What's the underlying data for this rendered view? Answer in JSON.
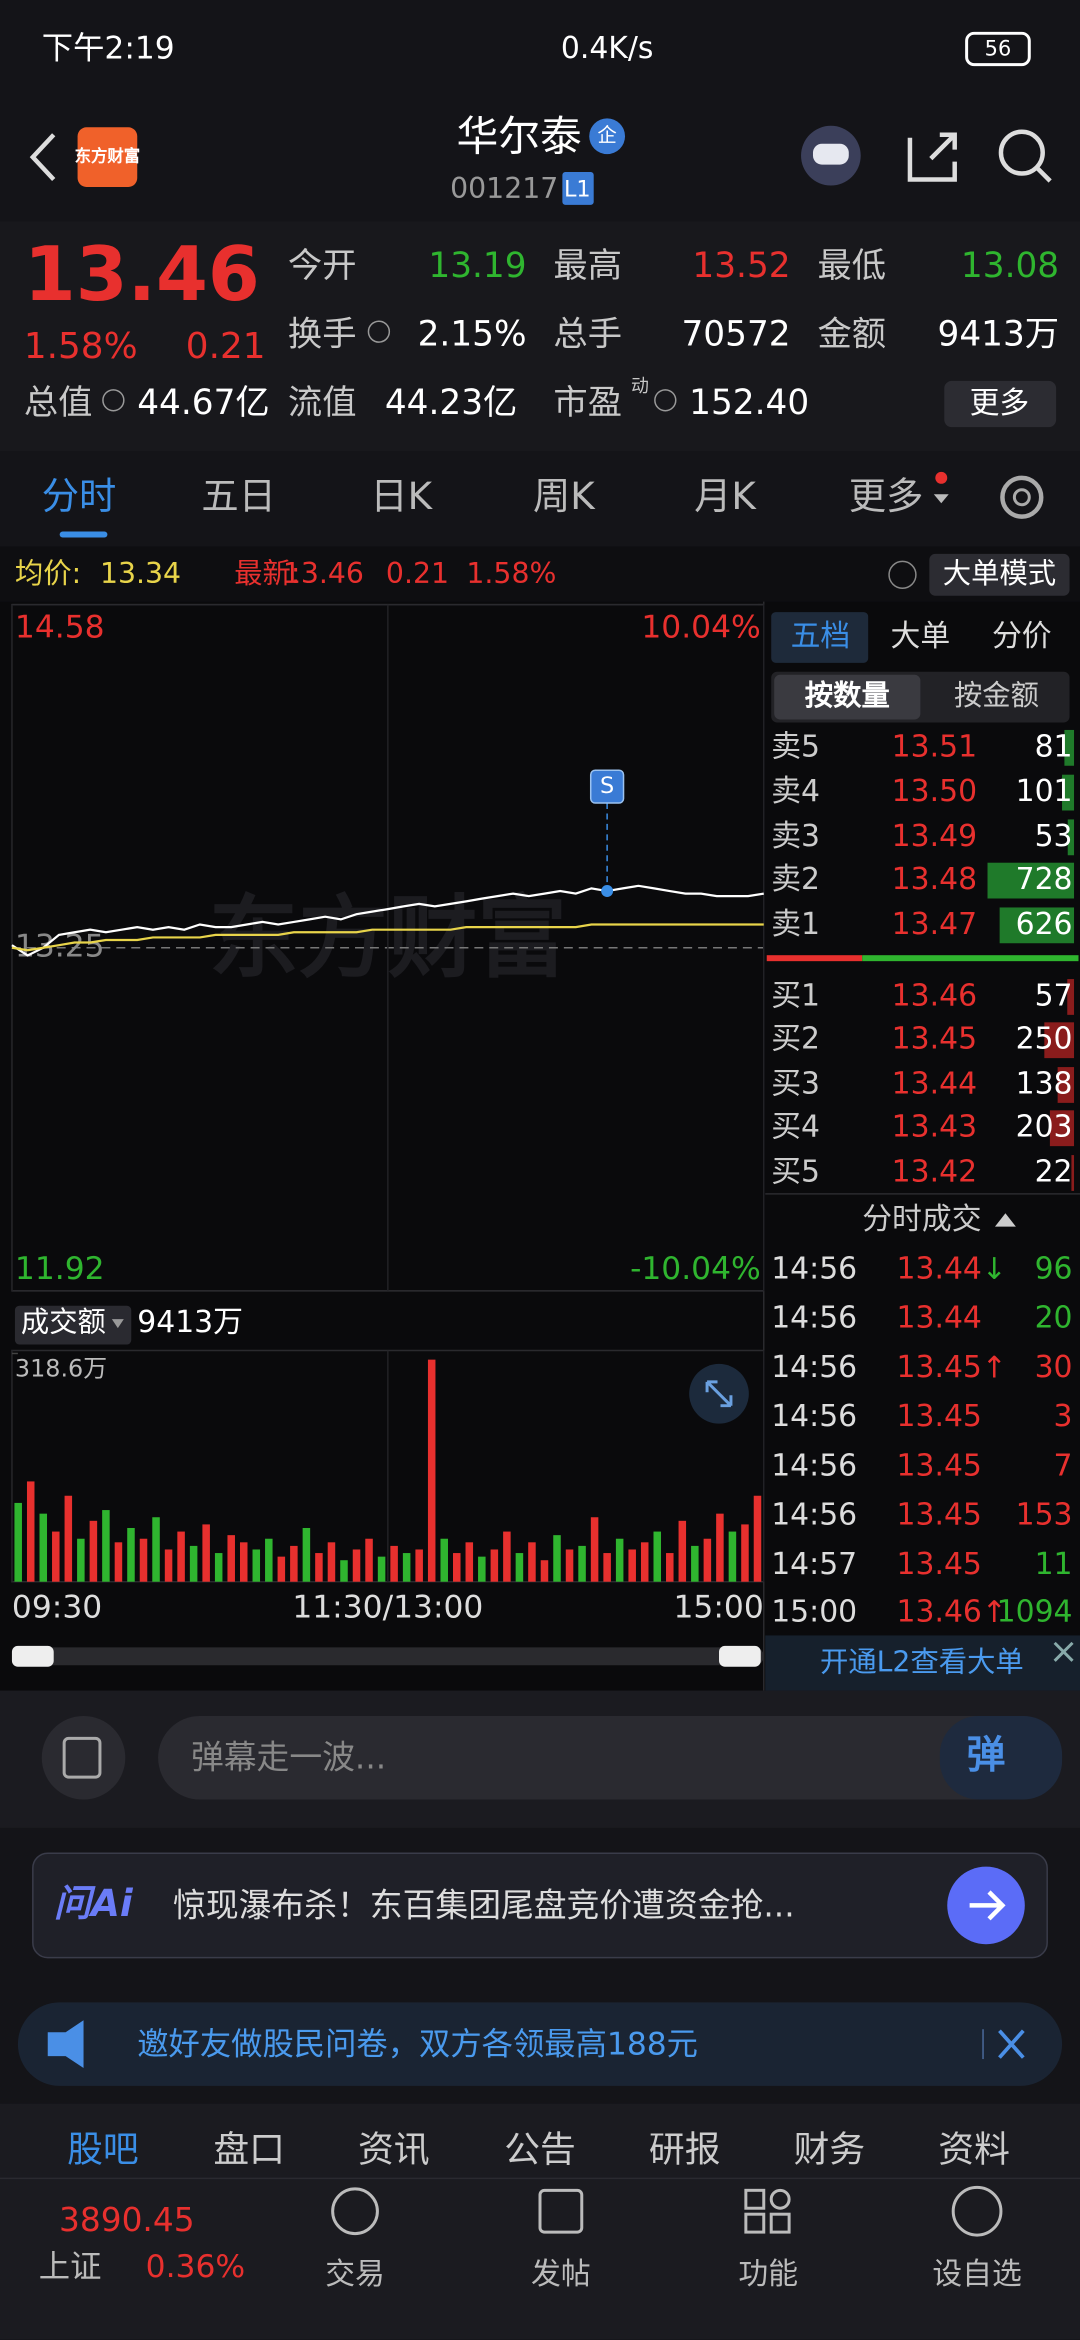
{
  "status": {
    "time": "下午2:19",
    "speed": "0.4K/s",
    "battery": "56"
  },
  "header": {
    "logo": "东方财富",
    "name": "华尔泰",
    "badge": "企",
    "code": "001217",
    "level": "L1"
  },
  "quote": {
    "price": "13.46",
    "pct": "1.58%",
    "change": "0.21",
    "pe_tag": "动",
    "more": "更多",
    "fields": [
      {
        "label": "今开",
        "value": "13.19",
        "color": "#2fb52f"
      },
      {
        "label": "最高",
        "value": "13.52",
        "color": "#e8302e"
      },
      {
        "label": "最低",
        "value": "13.08",
        "color": "#2fb52f"
      },
      {
        "label": "换手",
        "value": "2.15%",
        "color": "#ffffff"
      },
      {
        "label": "总手",
        "value": "70572",
        "color": "#ffffff"
      },
      {
        "label": "金额",
        "value": "9413万",
        "color": "#ffffff"
      },
      {
        "label": "总值",
        "value": "44.67亿",
        "color": "#ffffff"
      },
      {
        "label": "流值",
        "value": "44.23亿",
        "color": "#ffffff"
      },
      {
        "label": "市盈",
        "value": "152.40",
        "color": "#ffffff"
      }
    ]
  },
  "tabs": [
    "分时",
    "五日",
    "日K",
    "周K",
    "月K",
    "更多"
  ],
  "info": {
    "avg_label": "均价:",
    "avg": "13.34",
    "last_label": "最新:",
    "last": "13.46",
    "change": "0.21",
    "pct": "1.58%",
    "mode": "大单模式"
  },
  "chart_data": [
    {
      "type": "line",
      "watermark": "东方财富",
      "xlim": [
        0,
        240
      ],
      "xticks": [
        {
          "value": 0,
          "label": "09:30"
        },
        {
          "value": 120,
          "label": "11:30/13:00"
        },
        {
          "value": 240,
          "label": "15:00"
        }
      ],
      "ylim": [
        11.92,
        14.58
      ],
      "yticks": [
        14.58,
        13.25,
        11.92
      ],
      "y2lim": [
        -10.04,
        10.04
      ],
      "y2ticks": [
        {
          "value": 10.04,
          "label": "10.04%"
        },
        {
          "value": -10.04,
          "label": "-10.04%"
        }
      ],
      "x": [
        0,
        5,
        10,
        15,
        20,
        25,
        30,
        35,
        40,
        45,
        50,
        55,
        60,
        65,
        70,
        75,
        80,
        85,
        90,
        95,
        100,
        105,
        110,
        115,
        120,
        125,
        130,
        135,
        140,
        145,
        150,
        155,
        160,
        165,
        170,
        175,
        180,
        185,
        190,
        195,
        200,
        205,
        210,
        215,
        220,
        225,
        230,
        235,
        240
      ],
      "series": [
        {
          "color": "#ffffff",
          "values": [
            13.26,
            13.22,
            13.25,
            13.3,
            13.31,
            13.32,
            13.31,
            13.32,
            13.33,
            13.32,
            13.33,
            13.32,
            13.34,
            13.33,
            13.33,
            13.34,
            13.35,
            13.34,
            13.35,
            13.36,
            13.37,
            13.36,
            13.38,
            13.39,
            13.4,
            13.41,
            13.42,
            13.41,
            13.42,
            13.43,
            13.44,
            13.45,
            13.46,
            13.45,
            13.46,
            13.47,
            13.46,
            13.48,
            13.47,
            13.48,
            13.49,
            13.48,
            13.47,
            13.46,
            13.46,
            13.45,
            13.45,
            13.45,
            13.46
          ]
        },
        {
          "color": "#e8d44a",
          "values": [
            13.25,
            13.24,
            13.25,
            13.26,
            13.27,
            13.27,
            13.28,
            13.28,
            13.28,
            13.29,
            13.29,
            13.29,
            13.29,
            13.3,
            13.3,
            13.3,
            13.3,
            13.3,
            13.31,
            13.31,
            13.31,
            13.31,
            13.31,
            13.32,
            13.32,
            13.32,
            13.32,
            13.32,
            13.32,
            13.33,
            13.33,
            13.33,
            13.33,
            13.33,
            13.33,
            13.33,
            13.33,
            13.34,
            13.34,
            13.34,
            13.34,
            13.34,
            13.34,
            13.34,
            13.34,
            13.34,
            13.34,
            13.34,
            13.34
          ]
        }
      ],
      "marker": {
        "label": "S",
        "x": 190,
        "value": 13.47
      }
    },
    {
      "type": "bar",
      "label": "成交额",
      "total": "9413万",
      "ylim": [
        0,
        318.6
      ],
      "yticks": [
        {
          "value": 318.6,
          "label": "318.6万"
        }
      ],
      "values": [
        110,
        140,
        95,
        70,
        120,
        60,
        85,
        100,
        55,
        75,
        60,
        90,
        45,
        70,
        50,
        80,
        40,
        65,
        55,
        45,
        60,
        35,
        50,
        75,
        40,
        55,
        30,
        45,
        60,
        35,
        50,
        40,
        45,
        310,
        60,
        40,
        55,
        35,
        45,
        70,
        40,
        55,
        30,
        65,
        45,
        50,
        90,
        40,
        60,
        45,
        55,
        70,
        40,
        85,
        50,
        60,
        95,
        70,
        80,
        120
      ],
      "colors": [
        "#2fb52f",
        "#e8302e",
        "#2fb52f",
        "#e8302e",
        "#e8302e",
        "#2fb52f",
        "#e8302e",
        "#2fb52f",
        "#e8302e",
        "#2fb52f",
        "#e8302e",
        "#2fb52f",
        "#e8302e",
        "#e8302e",
        "#2fb52f",
        "#e8302e",
        "#2fb52f",
        "#e8302e",
        "#e8302e",
        "#2fb52f",
        "#2fb52f",
        "#e8302e",
        "#e8302e",
        "#2fb52f",
        "#e8302e",
        "#e8302e",
        "#2fb52f",
        "#e8302e",
        "#e8302e",
        "#2fb52f",
        "#e8302e",
        "#2fb52f",
        "#e8302e",
        "#e8302e",
        "#2fb52f",
        "#e8302e",
        "#e8302e",
        "#2fb52f",
        "#e8302e",
        "#e8302e",
        "#2fb52f",
        "#e8302e",
        "#e8302e",
        "#2fb52f",
        "#e8302e",
        "#2fb52f",
        "#e8302e",
        "#e8302e",
        "#2fb52f",
        "#e8302e",
        "#e8302e",
        "#2fb52f",
        "#e8302e",
        "#e8302e",
        "#2fb52f",
        "#e8302e",
        "#e8302e",
        "#2fb52f",
        "#e8302e",
        "#e8302e"
      ]
    }
  ],
  "orderbook": {
    "tabs": [
      "五档",
      "大单",
      "分价"
    ],
    "modes": [
      "按数量",
      "按金额"
    ],
    "asks": [
      {
        "label": "卖5",
        "price": "13.51",
        "volume": 81
      },
      {
        "label": "卖4",
        "price": "13.50",
        "volume": 101
      },
      {
        "label": "卖3",
        "price": "13.49",
        "volume": 53
      },
      {
        "label": "卖2",
        "price": "13.48",
        "volume": 728
      },
      {
        "label": "卖1",
        "price": "13.47",
        "volume": 626
      }
    ],
    "bids": [
      {
        "label": "买1",
        "price": "13.46",
        "volume": 57
      },
      {
        "label": "买2",
        "price": "13.45",
        "volume": 250
      },
      {
        "label": "买3",
        "price": "13.44",
        "volume": 138
      },
      {
        "label": "买4",
        "price": "13.43",
        "volume": 203
      },
      {
        "label": "买5",
        "price": "13.42",
        "volume": 22
      }
    ]
  },
  "trades": {
    "title": "分时成交",
    "l2": "开通L2查看大单",
    "rows": [
      {
        "time": "14:56",
        "price": "13.44",
        "dir": "↓",
        "volume": "96",
        "color": "#2fb52f"
      },
      {
        "time": "14:56",
        "price": "13.44",
        "dir": "",
        "volume": "20",
        "color": "#2fb52f"
      },
      {
        "time": "14:56",
        "price": "13.45",
        "dir": "↑",
        "volume": "30",
        "color": "#e8302e"
      },
      {
        "time": "14:56",
        "price": "13.45",
        "dir": "",
        "volume": "3",
        "color": "#e8302e"
      },
      {
        "time": "14:56",
        "price": "13.45",
        "dir": "",
        "volume": "7",
        "color": "#e8302e"
      },
      {
        "time": "14:56",
        "price": "13.45",
        "dir": "",
        "volume": "153",
        "color": "#e8302e"
      },
      {
        "time": "14:57",
        "price": "13.45",
        "dir": "",
        "volume": "11",
        "color": "#2fb52f"
      },
      {
        "time": "15:00",
        "price": "13.46",
        "dir": "↑",
        "volume": "1094",
        "color": "#2fb52f"
      }
    ]
  },
  "danmu": {
    "placeholder": "弹幕走一波...",
    "button": "弹"
  },
  "ai": {
    "logo": "问Ai",
    "text": "惊现瀑布杀！东百集团尾盘竞价遭资金抢..."
  },
  "banner": "邀好友做股民问卷，双方各领最高188元",
  "section_tabs": [
    "股吧",
    "盘口",
    "资讯",
    "公告",
    "研报",
    "财务",
    "资料"
  ],
  "nav": {
    "index_value": "3890.45",
    "index_name": "上证",
    "index_pct": "0.36%",
    "items": [
      "交易",
      "发帖",
      "功能",
      "设自选"
    ]
  }
}
